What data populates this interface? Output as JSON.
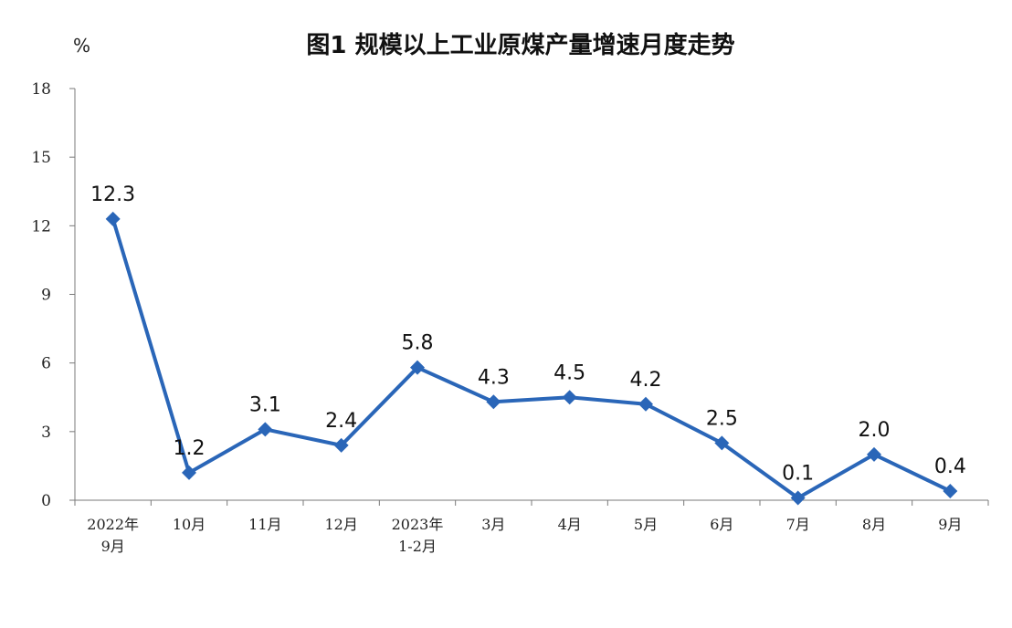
{
  "chart_data": {
    "type": "line",
    "title": "图1  规模以上工业原煤产量增速月度走势",
    "ylabel": "%",
    "xlabel": "",
    "ylim": [
      0,
      18
    ],
    "yticks": [
      "0",
      "3",
      "6",
      "9",
      "12",
      "15",
      "18"
    ],
    "grid": false,
    "categories": [
      [
        "2022年",
        "9月"
      ],
      [
        "10月"
      ],
      [
        "11月"
      ],
      [
        "12月"
      ],
      [
        "2023年",
        "1-2月"
      ],
      [
        "3月"
      ],
      [
        "4月"
      ],
      [
        "5月"
      ],
      [
        "6月"
      ],
      [
        "7月"
      ],
      [
        "8月"
      ],
      [
        "9月"
      ]
    ],
    "series": [
      {
        "values": [
          12.3,
          1.2,
          3.1,
          2.4,
          5.8,
          4.3,
          4.5,
          4.2,
          2.5,
          0.1,
          2.0,
          0.4
        ],
        "labels": [
          "12.3",
          "1.2",
          "3.1",
          "2.4",
          "5.8",
          "4.3",
          "4.5",
          "4.2",
          "2.5",
          "0.1",
          "2.0",
          "0.4"
        ],
        "color": "#2a66b8"
      }
    ],
    "axis_color": "#7a7a7a"
  }
}
